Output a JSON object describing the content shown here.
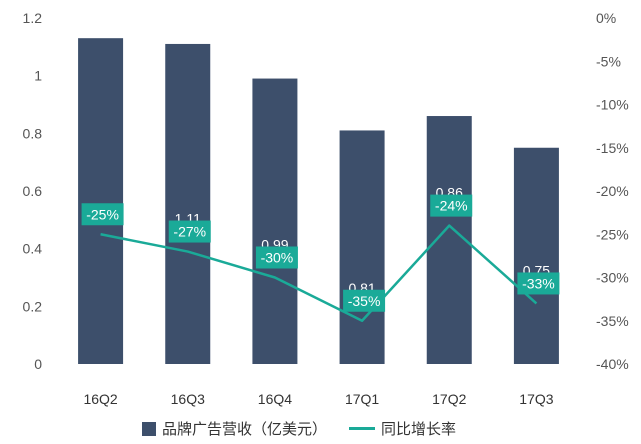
{
  "chart_data": {
    "type": "bar",
    "categories": [
      "16Q2",
      "16Q3",
      "16Q4",
      "17Q1",
      "17Q2",
      "17Q3"
    ],
    "series": [
      {
        "name": "品牌广告营收（亿美元）",
        "type": "bar",
        "axis": "left",
        "values": [
          1.13,
          1.11,
          0.99,
          0.81,
          0.86,
          0.75
        ],
        "data_labels": [
          "",
          "1.11",
          "0.99",
          "0.81",
          "0.86",
          "0.75"
        ]
      },
      {
        "name": "同比增长率",
        "type": "line",
        "axis": "right",
        "values": [
          -25,
          -27,
          -30,
          -35,
          -24,
          -33
        ],
        "data_labels": [
          "-25%",
          "-27%",
          "-30%",
          "-35%",
          "-24%",
          "-33%"
        ]
      }
    ],
    "y_left": {
      "range": [
        0,
        1.2
      ],
      "ticks": [
        "0",
        "0.2",
        "0.4",
        "0.6",
        "0.8",
        "1",
        "1.2"
      ]
    },
    "y_right": {
      "range": [
        -40,
        0
      ],
      "ticks": [
        "-40%",
        "-35%",
        "-30%",
        "-25%",
        "-20%",
        "-15%",
        "-10%",
        "-5%",
        "0%"
      ]
    },
    "legend_position": "bottom",
    "grid": false,
    "colors": {
      "bar": "#3d4f6b",
      "line": "#1aaa98",
      "label_box": "#1aaa98"
    }
  }
}
